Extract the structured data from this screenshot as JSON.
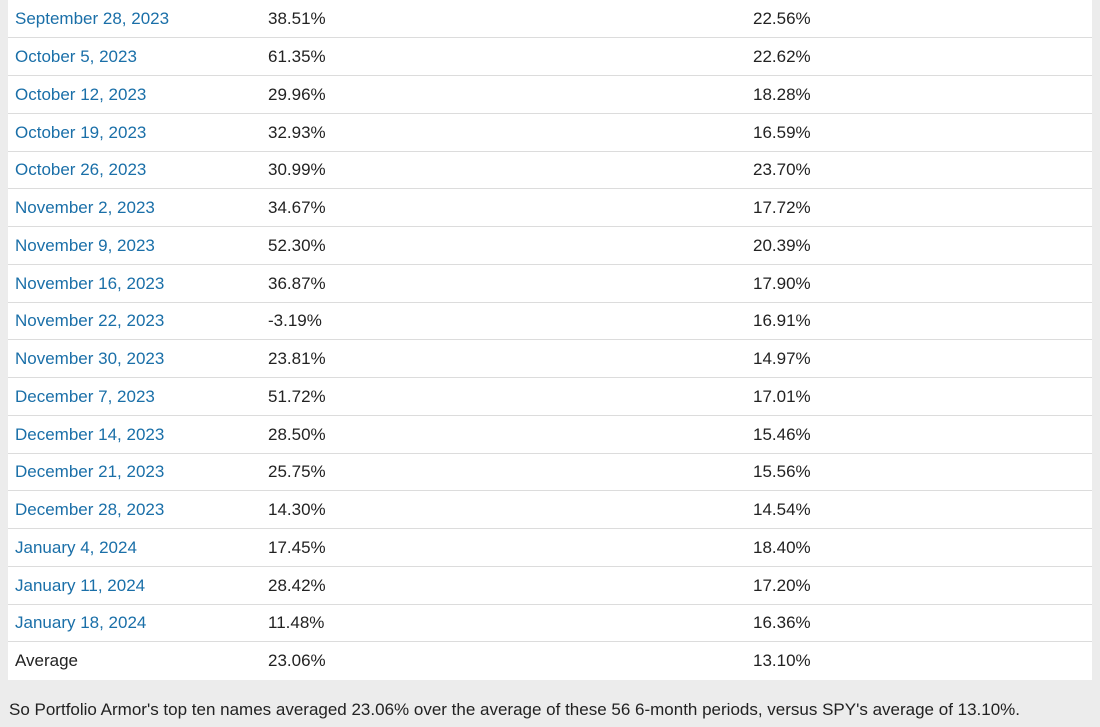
{
  "table": {
    "rows": [
      {
        "date": "September 28, 2023",
        "portfolio": "38.51%",
        "spy": "22.56%"
      },
      {
        "date": "October 5, 2023",
        "portfolio": "61.35%",
        "spy": "22.62%"
      },
      {
        "date": "October 12, 2023",
        "portfolio": "29.96%",
        "spy": "18.28%"
      },
      {
        "date": "October 19, 2023",
        "portfolio": "32.93%",
        "spy": "16.59%"
      },
      {
        "date": "October 26, 2023",
        "portfolio": "30.99%",
        "spy": "23.70%"
      },
      {
        "date": "November 2, 2023",
        "portfolio": "34.67%",
        "spy": "17.72%"
      },
      {
        "date": "November 9, 2023",
        "portfolio": "52.30%",
        "spy": "20.39%"
      },
      {
        "date": "November 16, 2023",
        "portfolio": "36.87%",
        "spy": "17.90%"
      },
      {
        "date": "November 22, 2023",
        "portfolio": "-3.19%",
        "spy": "16.91%"
      },
      {
        "date": "November 30, 2023",
        "portfolio": "23.81%",
        "spy": "14.97%"
      },
      {
        "date": "December 7, 2023",
        "portfolio": "51.72%",
        "spy": "17.01%"
      },
      {
        "date": "December 14, 2023",
        "portfolio": "28.50%",
        "spy": "15.46%"
      },
      {
        "date": "December 21, 2023",
        "portfolio": "25.75%",
        "spy": "15.56%"
      },
      {
        "date": "December 28, 2023",
        "portfolio": "14.30%",
        "spy": "14.54%"
      },
      {
        "date": "January 4, 2024",
        "portfolio": "17.45%",
        "spy": "18.40%"
      },
      {
        "date": "January 11, 2024",
        "portfolio": "28.42%",
        "spy": "17.20%"
      },
      {
        "date": "January 18, 2024",
        "portfolio": "11.48%",
        "spy": "16.36%"
      }
    ],
    "average": {
      "label": "Average",
      "portfolio": "23.06%",
      "spy": "13.10%"
    }
  },
  "summary": "So Portfolio Armor's top ten names averaged 23.06% over the average of these 56 6-month periods, versus SPY's average of 13.10%.",
  "colors": {
    "link": "#1a6fa8",
    "text": "#222222",
    "background": "#ececec",
    "table_background": "#ffffff",
    "row_border": "#dcdcdc"
  }
}
